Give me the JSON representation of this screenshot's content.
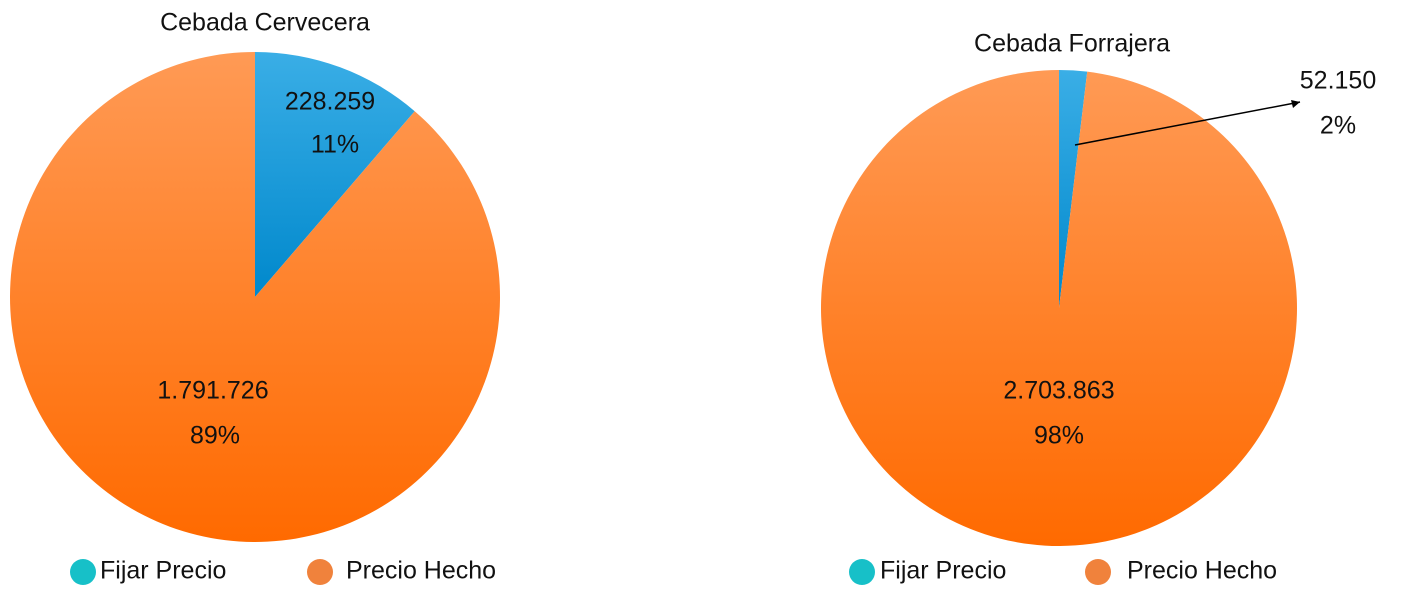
{
  "chart_data": [
    {
      "type": "pie",
      "title": "Cebada Cervecera",
      "categories": [
        "Fijar Precio",
        "Precio Hecho"
      ],
      "values": [
        228259,
        1791726
      ],
      "value_labels": [
        "228.259",
        "1.791.726"
      ],
      "percentages": [
        11,
        89
      ],
      "percentage_labels": [
        "11%",
        "89%"
      ],
      "colors": [
        "#1a9ad6",
        "#fb8230"
      ],
      "legend_colors": [
        "#17c0c8",
        "#f0823c"
      ],
      "legend": "bottom"
    },
    {
      "type": "pie",
      "title": "Cebada Forrajera",
      "categories": [
        "Fijar Precio",
        "Precio Hecho"
      ],
      "values": [
        52150,
        2703863
      ],
      "value_labels": [
        "52.150",
        "2.703.863"
      ],
      "percentages": [
        2,
        98
      ],
      "percentage_labels": [
        "2%",
        "98%"
      ],
      "colors": [
        "#1a9ad6",
        "#fb8230"
      ],
      "legend_colors": [
        "#17c0c8",
        "#f0823c"
      ],
      "legend": "bottom"
    }
  ]
}
